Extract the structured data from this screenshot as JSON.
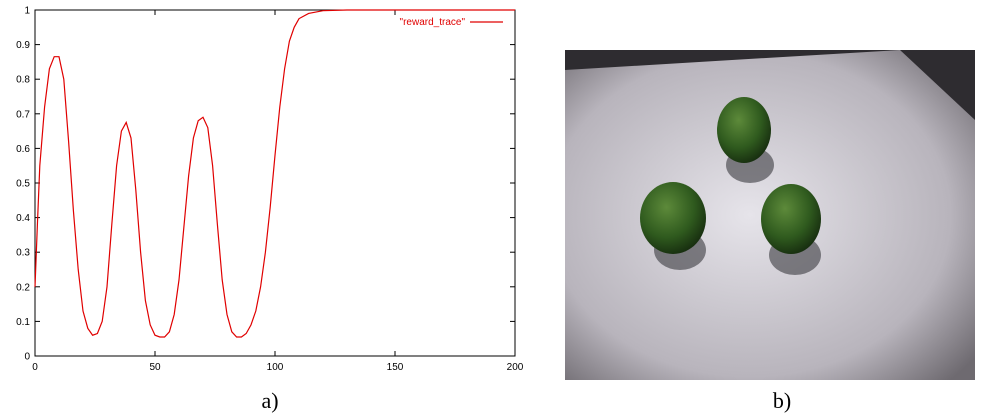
{
  "chart_data": {
    "type": "line",
    "x": [
      0,
      1,
      2,
      4,
      6,
      8,
      10,
      12,
      14,
      16,
      18,
      20,
      22,
      24,
      26,
      28,
      30,
      32,
      34,
      36,
      38,
      40,
      42,
      44,
      46,
      48,
      50,
      52,
      54,
      56,
      58,
      60,
      62,
      64,
      66,
      68,
      70,
      72,
      74,
      76,
      78,
      80,
      82,
      84,
      86,
      88,
      90,
      92,
      94,
      96,
      98,
      100,
      102,
      104,
      106,
      108,
      110,
      114,
      120,
      130,
      200
    ],
    "series": [
      {
        "name": "\"reward_trace\"",
        "color": "#e00000",
        "values": [
          0.2,
          0.38,
          0.55,
          0.72,
          0.83,
          0.865,
          0.865,
          0.8,
          0.62,
          0.42,
          0.25,
          0.13,
          0.08,
          0.06,
          0.065,
          0.1,
          0.2,
          0.38,
          0.55,
          0.65,
          0.675,
          0.63,
          0.48,
          0.3,
          0.16,
          0.09,
          0.06,
          0.055,
          0.055,
          0.07,
          0.12,
          0.22,
          0.37,
          0.52,
          0.63,
          0.68,
          0.69,
          0.66,
          0.55,
          0.38,
          0.22,
          0.12,
          0.07,
          0.055,
          0.055,
          0.065,
          0.09,
          0.13,
          0.2,
          0.3,
          0.43,
          0.58,
          0.72,
          0.83,
          0.91,
          0.95,
          0.975,
          0.99,
          0.998,
          1,
          1
        ]
      }
    ],
    "xlim": [
      0,
      200
    ],
    "xticks": [
      0,
      50,
      100,
      150,
      200
    ],
    "ylim": [
      0,
      1
    ],
    "yticks": [
      0,
      0.1,
      0.2,
      0.3,
      0.4,
      0.5,
      0.6,
      0.7,
      0.8,
      0.9,
      1
    ],
    "legend": "top-right"
  },
  "captions": [
    "a)",
    "b)"
  ]
}
